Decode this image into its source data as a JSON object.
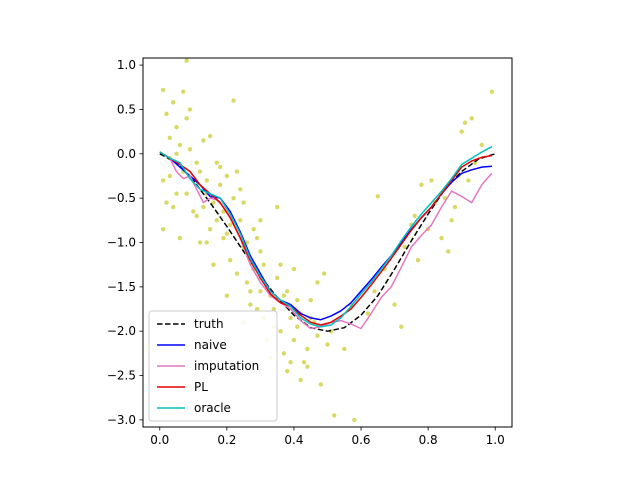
{
  "chart_data": {
    "type": "line",
    "title": "",
    "xlabel": "",
    "ylabel": "",
    "xlim": [
      -0.05,
      1.05
    ],
    "ylim": [
      -3.08,
      1.08
    ],
    "xticks": [
      0.0,
      0.2,
      0.4,
      0.6,
      0.8,
      1.0
    ],
    "xtick_labels": [
      "0.0",
      "0.2",
      "0.4",
      "0.6",
      "0.8",
      "1.0"
    ],
    "yticks": [
      -3.0,
      -2.5,
      -2.0,
      -1.5,
      -1.0,
      -0.5,
      0.0,
      0.5,
      1.0
    ],
    "ytick_labels": [
      "−3.0",
      "−2.5",
      "−2.0",
      "−1.5",
      "−1.0",
      "−0.5",
      "0.0",
      "0.5",
      "1.0"
    ],
    "grid": false,
    "legend_position": "lower-left",
    "scatter": {
      "color": "#cccc33",
      "points": [
        [
          0.01,
          0.72
        ],
        [
          0.02,
          0.45
        ],
        [
          0.03,
          0.18
        ],
        [
          0.01,
          -0.3
        ],
        [
          0.02,
          -0.55
        ],
        [
          0.01,
          -0.85
        ],
        [
          0.03,
          -0.05
        ],
        [
          0.04,
          0.58
        ],
        [
          0.05,
          0.3
        ],
        [
          0.04,
          -0.6
        ],
        [
          0.05,
          -0.45
        ],
        [
          0.06,
          -0.95
        ],
        [
          0.07,
          0.7
        ],
        [
          0.08,
          1.05
        ],
        [
          0.08,
          0.4
        ],
        [
          0.09,
          0.05
        ],
        [
          0.1,
          -0.3
        ],
        [
          0.11,
          -0.7
        ],
        [
          0.12,
          -0.2
        ],
        [
          0.13,
          0.15
        ],
        [
          0.14,
          -0.45
        ],
        [
          0.15,
          -0.85
        ],
        [
          0.14,
          -1.0
        ],
        [
          0.16,
          -0.55
        ],
        [
          0.17,
          -0.1
        ],
        [
          0.18,
          -0.35
        ],
        [
          0.19,
          -0.65
        ],
        [
          0.2,
          -0.9
        ],
        [
          0.21,
          -1.2
        ],
        [
          0.22,
          -0.5
        ],
        [
          0.23,
          -0.2
        ],
        [
          0.24,
          -0.75
        ],
        [
          0.25,
          -1.05
        ],
        [
          0.26,
          -1.45
        ],
        [
          0.27,
          -1.7
        ],
        [
          0.28,
          -1.3
        ],
        [
          0.29,
          -0.95
        ],
        [
          0.3,
          -1.55
        ],
        [
          0.31,
          -1.85
        ],
        [
          0.32,
          -2.1
        ],
        [
          0.33,
          -1.6
        ],
        [
          0.34,
          -1.75
        ],
        [
          0.35,
          -1.4
        ],
        [
          0.36,
          -2.0
        ],
        [
          0.37,
          -2.25
        ],
        [
          0.38,
          -1.55
        ],
        [
          0.39,
          -1.85
        ],
        [
          0.4,
          -2.1
        ],
        [
          0.41,
          -1.65
        ],
        [
          0.42,
          -1.8
        ],
        [
          0.43,
          -2.35
        ],
        [
          0.44,
          -2.2
        ],
        [
          0.45,
          -1.65
        ],
        [
          0.46,
          -1.9
        ],
        [
          0.47,
          -2.05
        ],
        [
          0.48,
          -2.6
        ],
        [
          0.49,
          -1.35
        ],
        [
          0.5,
          -2.15
        ],
        [
          0.51,
          -2.0
        ],
        [
          0.52,
          -2.95
        ],
        [
          0.3,
          -1.4
        ],
        [
          0.25,
          -1.9
        ],
        [
          0.2,
          -1.6
        ],
        [
          0.35,
          -0.6
        ],
        [
          0.22,
          0.6
        ],
        [
          0.18,
          -0.15
        ],
        [
          0.12,
          -1.0
        ],
        [
          0.09,
          0.5
        ],
        [
          0.07,
          -0.2
        ],
        [
          0.06,
          0.1
        ],
        [
          0.3,
          -1.1
        ],
        [
          0.33,
          -2.3
        ],
        [
          0.27,
          -1.55
        ],
        [
          0.4,
          -1.3
        ],
        [
          0.42,
          -2.55
        ],
        [
          0.58,
          -3.0
        ],
        [
          0.64,
          -1.55
        ],
        [
          0.65,
          -0.48
        ],
        [
          0.67,
          -1.3
        ],
        [
          0.7,
          -1.7
        ],
        [
          0.72,
          -1.95
        ],
        [
          0.75,
          -0.8
        ],
        [
          0.76,
          -0.7
        ],
        [
          0.77,
          -1.2
        ],
        [
          0.78,
          -0.35
        ],
        [
          0.8,
          -0.85
        ],
        [
          0.81,
          -0.3
        ],
        [
          0.82,
          -0.55
        ],
        [
          0.84,
          -0.95
        ],
        [
          0.85,
          -0.5
        ],
        [
          0.86,
          -1.1
        ],
        [
          0.88,
          -0.6
        ],
        [
          0.89,
          -0.25
        ],
        [
          0.9,
          0.25
        ],
        [
          0.91,
          0.35
        ],
        [
          0.93,
          0.4
        ],
        [
          0.94,
          -0.1
        ],
        [
          0.96,
          0.1
        ],
        [
          0.99,
          0.7
        ],
        [
          0.92,
          -0.3
        ],
        [
          0.87,
          -0.75
        ],
        [
          0.73,
          -1.05
        ],
        [
          0.62,
          -1.8
        ],
        [
          0.55,
          -2.2
        ],
        [
          0.57,
          -1.7
        ],
        [
          0.45,
          -1.85
        ],
        [
          0.38,
          -2.45
        ],
        [
          0.36,
          -1.25
        ],
        [
          0.24,
          -0.4
        ],
        [
          0.28,
          -0.85
        ],
        [
          0.15,
          0.2
        ],
        [
          0.11,
          -0.1
        ],
        [
          0.13,
          -0.6
        ],
        [
          0.16,
          -1.25
        ],
        [
          0.19,
          -0.95
        ],
        [
          0.21,
          -0.8
        ],
        [
          0.23,
          -1.35
        ],
        [
          0.26,
          -1.0
        ],
        [
          0.29,
          -1.75
        ],
        [
          0.31,
          -1.25
        ],
        [
          0.34,
          -1.95
        ],
        [
          0.37,
          -1.6
        ],
        [
          0.39,
          -2.35
        ],
        [
          0.41,
          -1.95
        ],
        [
          0.44,
          -2.4
        ],
        [
          0.47,
          -1.45
        ],
        [
          0.05,
          0.0
        ],
        [
          0.03,
          -0.25
        ],
        [
          0.08,
          -0.45
        ],
        [
          0.1,
          -0.65
        ],
        [
          0.14,
          -0.3
        ],
        [
          0.17,
          -0.75
        ],
        [
          0.2,
          -0.25
        ],
        [
          0.25,
          -0.55
        ],
        [
          0.3,
          -0.75
        ]
      ]
    },
    "series": [
      {
        "name": "truth",
        "color": "#000000",
        "dash": true,
        "x": [
          0.0,
          0.05,
          0.1,
          0.15,
          0.2,
          0.25,
          0.3,
          0.35,
          0.4,
          0.45,
          0.5,
          0.55,
          0.6,
          0.65,
          0.7,
          0.75,
          0.8,
          0.85,
          0.9,
          0.95,
          1.0
        ],
        "y": [
          0.0,
          -0.1,
          -0.3,
          -0.55,
          -0.82,
          -1.1,
          -1.38,
          -1.62,
          -1.82,
          -1.96,
          -2.0,
          -1.96,
          -1.82,
          -1.6,
          -1.3,
          -0.98,
          -0.68,
          -0.4,
          -0.2,
          -0.06,
          0.0
        ]
      },
      {
        "name": "naive",
        "color": "#0000ff",
        "dash": false,
        "x": [
          0.0,
          0.03,
          0.06,
          0.09,
          0.12,
          0.15,
          0.18,
          0.21,
          0.24,
          0.27,
          0.3,
          0.33,
          0.36,
          0.39,
          0.42,
          0.45,
          0.48,
          0.51,
          0.54,
          0.57,
          0.6,
          0.63,
          0.66,
          0.69,
          0.72,
          0.75,
          0.78,
          0.81,
          0.84,
          0.87,
          0.9,
          0.93,
          0.96,
          0.99
        ],
        "y": [
          0.02,
          -0.05,
          -0.15,
          -0.25,
          -0.35,
          -0.48,
          -0.5,
          -0.65,
          -0.88,
          -1.15,
          -1.35,
          -1.55,
          -1.65,
          -1.7,
          -1.8,
          -1.85,
          -1.87,
          -1.83,
          -1.77,
          -1.68,
          -1.55,
          -1.42,
          -1.28,
          -1.15,
          -1.0,
          -0.85,
          -0.72,
          -0.6,
          -0.45,
          -0.32,
          -0.22,
          -0.18,
          -0.15,
          -0.14
        ]
      },
      {
        "name": "imputation",
        "color": "#e377c2",
        "dash": false,
        "x": [
          0.0,
          0.03,
          0.05,
          0.07,
          0.09,
          0.11,
          0.13,
          0.15,
          0.17,
          0.19,
          0.21,
          0.24,
          0.27,
          0.3,
          0.33,
          0.36,
          0.39,
          0.42,
          0.45,
          0.48,
          0.51,
          0.54,
          0.57,
          0.6,
          0.63,
          0.66,
          0.69,
          0.72,
          0.75,
          0.78,
          0.81,
          0.84,
          0.87,
          0.9,
          0.93,
          0.96,
          0.99
        ],
        "y": [
          0.02,
          -0.05,
          -0.2,
          -0.28,
          -0.25,
          -0.4,
          -0.55,
          -0.5,
          -0.52,
          -0.6,
          -0.72,
          -0.95,
          -1.25,
          -1.45,
          -1.6,
          -1.68,
          -1.75,
          -1.88,
          -1.97,
          -1.95,
          -1.9,
          -1.88,
          -1.92,
          -1.97,
          -1.8,
          -1.62,
          -1.5,
          -1.28,
          -1.05,
          -0.92,
          -0.8,
          -0.6,
          -0.42,
          -0.48,
          -0.55,
          -0.35,
          -0.22
        ]
      },
      {
        "name": "PL",
        "color": "#e60000",
        "dash": false,
        "x": [
          0.0,
          0.03,
          0.06,
          0.09,
          0.12,
          0.15,
          0.18,
          0.21,
          0.24,
          0.27,
          0.3,
          0.33,
          0.36,
          0.39,
          0.42,
          0.45,
          0.48,
          0.51,
          0.54,
          0.57,
          0.6,
          0.63,
          0.66,
          0.69,
          0.72,
          0.75,
          0.78,
          0.81,
          0.84,
          0.87,
          0.9,
          0.93,
          0.96,
          0.99
        ],
        "y": [
          0.02,
          -0.05,
          -0.12,
          -0.2,
          -0.35,
          -0.45,
          -0.55,
          -0.72,
          -0.95,
          -1.2,
          -1.4,
          -1.58,
          -1.68,
          -1.72,
          -1.82,
          -1.9,
          -1.93,
          -1.9,
          -1.83,
          -1.75,
          -1.62,
          -1.48,
          -1.33,
          -1.18,
          -1.02,
          -0.86,
          -0.72,
          -0.6,
          -0.45,
          -0.3,
          -0.15,
          -0.08,
          -0.04,
          -0.02
        ]
      },
      {
        "name": "oracle",
        "color": "#00bfbf",
        "dash": false,
        "x": [
          0.0,
          0.03,
          0.06,
          0.09,
          0.12,
          0.15,
          0.18,
          0.21,
          0.24,
          0.27,
          0.3,
          0.33,
          0.36,
          0.39,
          0.42,
          0.45,
          0.48,
          0.51,
          0.54,
          0.57,
          0.6,
          0.63,
          0.66,
          0.69,
          0.72,
          0.75,
          0.78,
          0.81,
          0.84,
          0.87,
          0.9,
          0.93,
          0.96,
          0.99
        ],
        "y": [
          0.02,
          -0.05,
          -0.1,
          -0.28,
          -0.4,
          -0.45,
          -0.5,
          -0.68,
          -0.9,
          -1.18,
          -1.38,
          -1.55,
          -1.65,
          -1.72,
          -1.85,
          -1.92,
          -1.95,
          -1.93,
          -1.85,
          -1.72,
          -1.58,
          -1.45,
          -1.3,
          -1.15,
          -0.98,
          -0.82,
          -0.68,
          -0.55,
          -0.42,
          -0.28,
          -0.12,
          -0.05,
          0.02,
          0.08
        ]
      }
    ]
  }
}
